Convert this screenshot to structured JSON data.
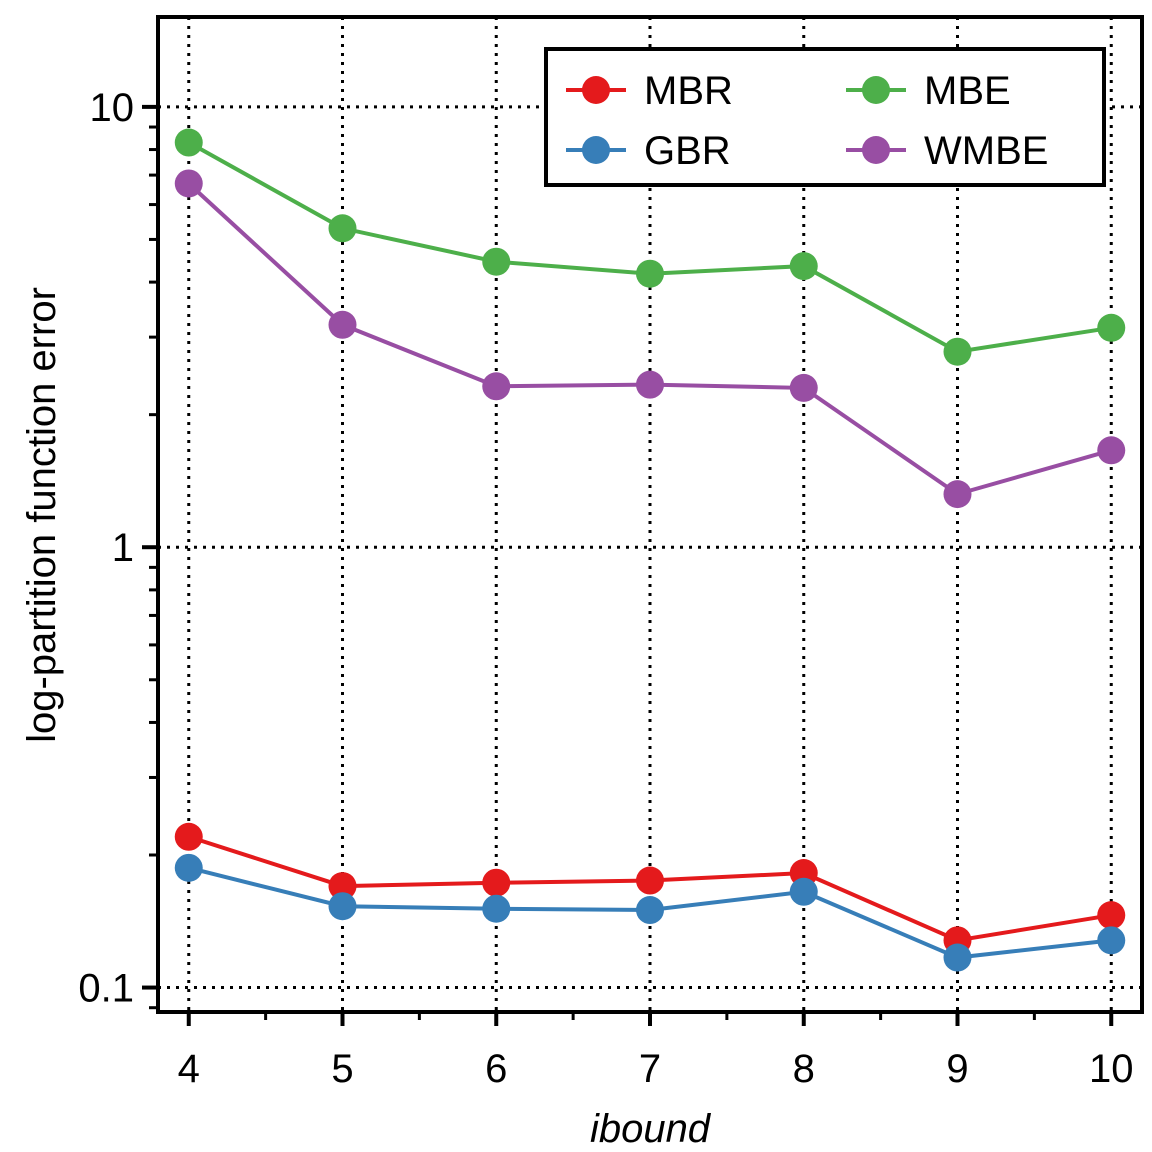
{
  "chart_data": {
    "type": "line",
    "title": "",
    "xlabel": "ibound",
    "ylabel": "log-partition function error",
    "x": [
      4,
      5,
      6,
      7,
      8,
      9,
      10
    ],
    "xlim": [
      3.8,
      10.2
    ],
    "ylim": [
      0.088,
      16
    ],
    "yscale": "log",
    "grid": true,
    "legend_position": "top-right",
    "x_tick_labels": [
      "4",
      "5",
      "6",
      "7",
      "8",
      "9",
      "10"
    ],
    "y_tick_labels": [
      {
        "value": 0.1,
        "label": "0.1"
      },
      {
        "value": 1,
        "label": "1"
      },
      {
        "value": 10,
        "label": "10"
      }
    ],
    "series": [
      {
        "name": "MBR",
        "color": "#e41a1c",
        "values": [
          0.22,
          0.17,
          0.173,
          0.175,
          0.182,
          0.128,
          0.146
        ]
      },
      {
        "name": "GBR",
        "color": "#377eb8",
        "values": [
          0.187,
          0.153,
          0.151,
          0.15,
          0.165,
          0.117,
          0.128
        ]
      },
      {
        "name": "MBE",
        "color": "#4daf4a",
        "values": [
          8.3,
          5.3,
          4.45,
          4.18,
          4.35,
          2.78,
          3.15
        ]
      },
      {
        "name": "WMBE",
        "color": "#984ea3",
        "values": [
          6.7,
          3.2,
          2.32,
          2.34,
          2.3,
          1.32,
          1.66
        ]
      }
    ]
  }
}
